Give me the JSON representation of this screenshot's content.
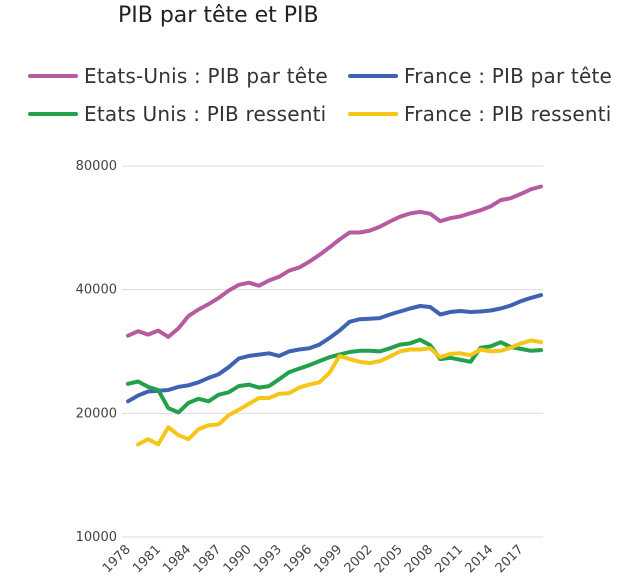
{
  "chart_data": {
    "type": "line",
    "title": "PIB par tête et PIB",
    "xlabel": "",
    "ylabel": "",
    "y_scale": "log",
    "ylim": [
      10000,
      80000
    ],
    "yticks": [
      10000,
      20000,
      40000,
      80000
    ],
    "xlim": [
      1978,
      2019
    ],
    "xticks": [
      1978,
      1981,
      1984,
      1987,
      1990,
      1993,
      1996,
      1999,
      2002,
      2005,
      2008,
      2011,
      2014,
      2017
    ],
    "grid": true,
    "legend_position": "top",
    "series": [
      {
        "name": "Etats-Unis : PIB par tête",
        "color": "#b65ba0",
        "x": [
          1978,
          1979,
          1980,
          1981,
          1982,
          1983,
          1984,
          1985,
          1986,
          1987,
          1988,
          1989,
          1990,
          1991,
          1992,
          1993,
          1994,
          1995,
          1996,
          1997,
          1998,
          1999,
          2000,
          2001,
          2002,
          2003,
          2004,
          2005,
          2006,
          2007,
          2008,
          2009,
          2010,
          2011,
          2012,
          2013,
          2014,
          2015,
          2016,
          2017,
          2018,
          2019
        ],
        "values": [
          30900,
          31700,
          31100,
          31800,
          30700,
          32200,
          34500,
          35800,
          36900,
          38200,
          39800,
          41100,
          41600,
          40900,
          42100,
          43000,
          44500,
          45300,
          46800,
          48600,
          50700,
          53000,
          55100,
          55100,
          55700,
          56900,
          58600,
          60200,
          61300,
          61900,
          61200,
          58700,
          59700,
          60300,
          61400,
          62400,
          63800,
          66100,
          66800,
          68400,
          70200,
          71300
        ]
      },
      {
        "name": "France : PIB par tête",
        "color": "#3f62b2",
        "x": [
          1978,
          1979,
          1980,
          1981,
          1982,
          1983,
          1984,
          1985,
          1986,
          1987,
          1988,
          1989,
          1990,
          1991,
          1992,
          1993,
          1994,
          1995,
          1996,
          1997,
          1998,
          1999,
          2000,
          2001,
          2002,
          2003,
          2004,
          2005,
          2006,
          2007,
          2008,
          2009,
          2010,
          2011,
          2012,
          2013,
          2014,
          2015,
          2016,
          2017,
          2018,
          2019
        ],
        "values": [
          21400,
          22100,
          22600,
          22700,
          22800,
          23200,
          23400,
          23800,
          24400,
          24900,
          25900,
          27200,
          27600,
          27800,
          28000,
          27600,
          28300,
          28600,
          28800,
          29400,
          30500,
          31800,
          33400,
          33900,
          34000,
          34100,
          34800,
          35400,
          36000,
          36500,
          36300,
          34800,
          35300,
          35500,
          35300,
          35400,
          35600,
          36000,
          36600,
          37500,
          38200,
          38800
        ]
      },
      {
        "name": "Etats Unis : PIB ressenti",
        "color": "#23a04a",
        "x": [
          1978,
          1979,
          1980,
          1981,
          1982,
          1983,
          1984,
          1985,
          1986,
          1987,
          1988,
          1989,
          1990,
          1991,
          1992,
          1993,
          1994,
          1995,
          1996,
          1997,
          1998,
          1999,
          2000,
          2001,
          2002,
          2003,
          2004,
          2005,
          2006,
          2007,
          2008,
          2009,
          2010,
          2011,
          2012,
          2013,
          2014,
          2015,
          2016,
          2017,
          2018,
          2019
        ],
        "values": [
          23600,
          23900,
          23200,
          22800,
          20600,
          20100,
          21200,
          21700,
          21400,
          22200,
          22500,
          23300,
          23500,
          23100,
          23300,
          24200,
          25200,
          25700,
          26200,
          26800,
          27400,
          27800,
          28200,
          28400,
          28400,
          28300,
          28800,
          29400,
          29600,
          30200,
          29300,
          27100,
          27300,
          27000,
          26700,
          28900,
          29100,
          29800,
          29000,
          28700,
          28400,
          28500
        ]
      },
      {
        "name": "France : PIB ressenti",
        "color": "#f5c518",
        "x": [
          1979,
          1980,
          1981,
          1982,
          1983,
          1984,
          1985,
          1986,
          1987,
          1988,
          1989,
          1990,
          1991,
          1992,
          1993,
          1994,
          1995,
          1996,
          1997,
          1998,
          1999,
          2000,
          2001,
          2002,
          2003,
          2004,
          2005,
          2006,
          2007,
          2008,
          2009,
          2010,
          2011,
          2012,
          2013,
          2014,
          2015,
          2016,
          2017,
          2018,
          2019
        ],
        "values": [
          16800,
          17300,
          16800,
          18500,
          17700,
          17300,
          18300,
          18700,
          18800,
          19800,
          20400,
          21100,
          21800,
          21800,
          22300,
          22400,
          23100,
          23500,
          23800,
          25100,
          27600,
          27100,
          26700,
          26500,
          26800,
          27500,
          28300,
          28600,
          28600,
          28800,
          27400,
          27900,
          28000,
          27700,
          28600,
          28300,
          28400,
          28900,
          29600,
          30100,
          29800
        ]
      }
    ]
  }
}
